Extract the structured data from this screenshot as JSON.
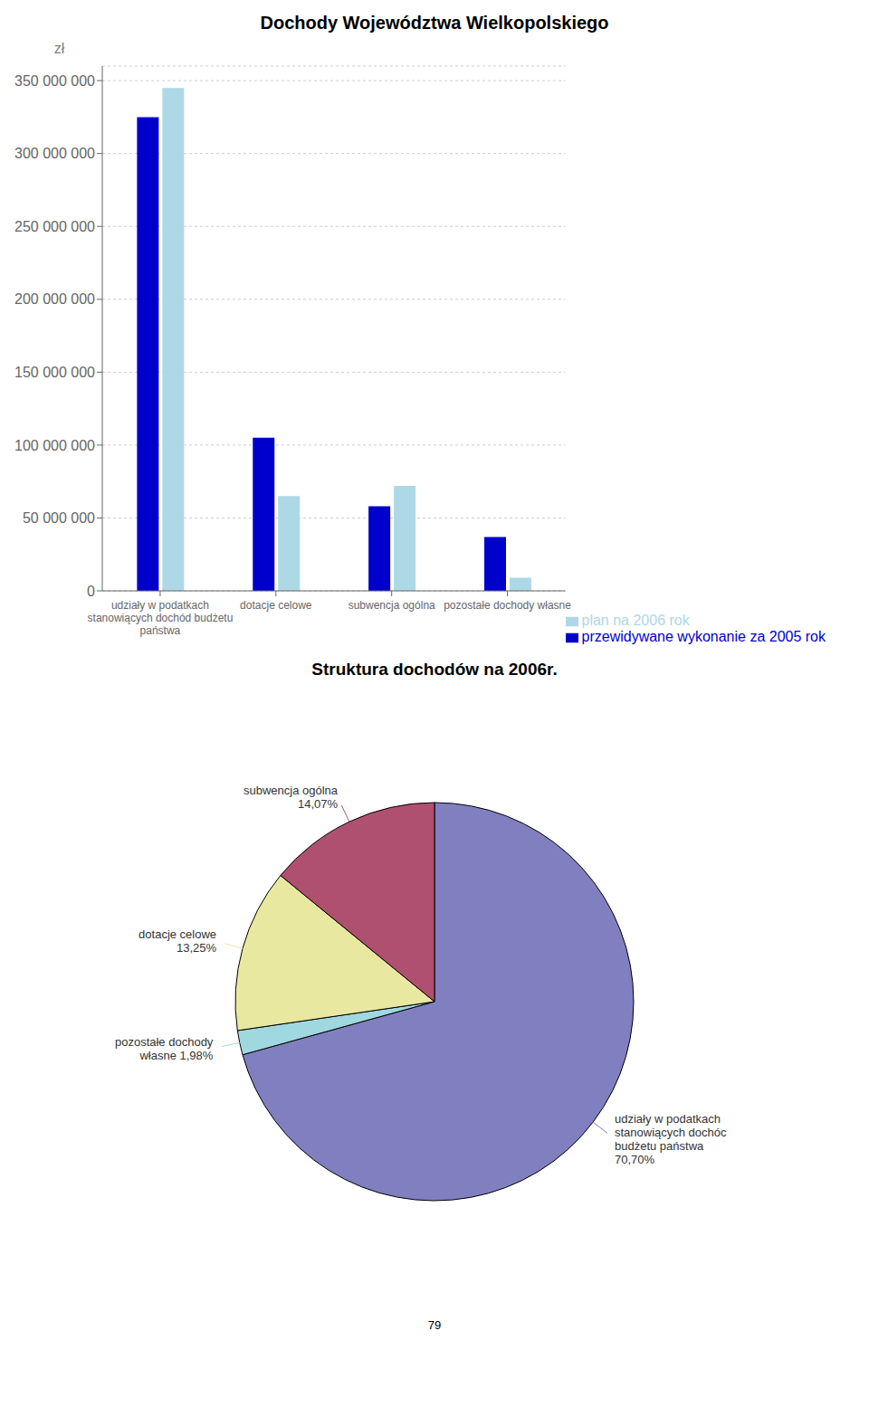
{
  "chart_data": [
    {
      "type": "bar",
      "title": "Dochody Województwa Wielkopolskiego",
      "ylabel": "zł",
      "categories": [
        "udziały w podatkach\nstanowiących dochód budżetu\npaństwa",
        "dotacje celowe",
        "subwencja ogólna",
        "pozostałe dochody własne"
      ],
      "series": [
        {
          "name": "przewidywane wykonanie za 2005 rok",
          "color": "#0000CD",
          "values": [
            325000000,
            105000000,
            58000000,
            37000000
          ]
        },
        {
          "name": "plan na 2006 rok",
          "color": "#ADD8E6",
          "values": [
            345000000,
            65000000,
            72000000,
            9000000
          ]
        }
      ],
      "ylim": [
        0,
        360000000
      ],
      "yticks": [
        0,
        {
          "value": 50000000,
          "label": "50 000 000"
        },
        {
          "value": 100000000,
          "label": "100 000 000"
        },
        {
          "value": 150000000,
          "label": "150 000 000"
        },
        {
          "value": 200000000,
          "label": "200 000 000"
        },
        {
          "value": 250000000,
          "label": "250 000 000"
        },
        {
          "value": 300000000,
          "label": "300 000 000"
        },
        {
          "value": 350000000,
          "label": "350 000 000"
        }
      ],
      "grid": true,
      "legend": "lower right"
    },
    {
      "type": "pie",
      "title": "Struktura dochodów na 2006r.",
      "values": [
        70.7,
        1.98,
        13.25,
        14.07
      ],
      "colors": [
        "#8080C0",
        "#A0D8E0",
        "#E8E8A0",
        "#B05070"
      ],
      "data_labels": true,
      "value_labels": [
        "udziały w podatkach\nstanowiących dochóc\nbudżetu państwa\n70,70%",
        "pozostałe dochody\nwłasne 1,98%",
        "dotacje celowe\n13,25%",
        "subwencja ogólna\n14,07%"
      ],
      "annotations": [
        "79"
      ]
    }
  ]
}
